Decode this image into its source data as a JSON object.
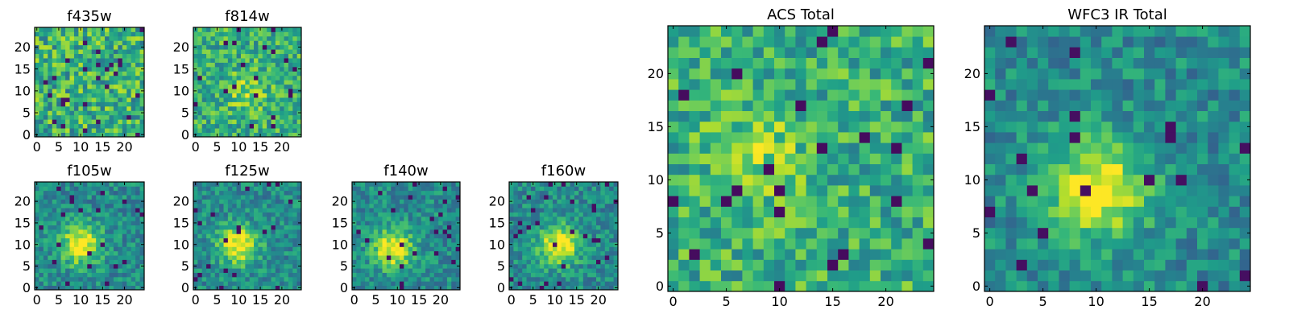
{
  "chart_data": [
    {
      "type": "heatmap",
      "title": "f435w",
      "xlim": [
        -0.5,
        24.5
      ],
      "ylim": [
        -0.5,
        24.5
      ],
      "grid_size": [
        25,
        25
      ],
      "xticks": [
        0,
        5,
        10,
        15,
        20
      ],
      "yticks": [
        0,
        5,
        10,
        15,
        20
      ],
      "colormap": "viridis",
      "pattern": "noise",
      "seed": 11
    },
    {
      "type": "heatmap",
      "title": "f814w",
      "xlim": [
        -0.5,
        24.5
      ],
      "ylim": [
        -0.5,
        24.5
      ],
      "grid_size": [
        25,
        25
      ],
      "xticks": [
        0,
        5,
        10,
        15,
        20
      ],
      "yticks": [
        0,
        5,
        10,
        15,
        20
      ],
      "colormap": "viridis",
      "pattern": "noise+faint-source",
      "source_center": [
        12,
        10
      ],
      "seed": 23
    },
    {
      "type": "heatmap",
      "title": "f105w",
      "xlim": [
        -0.5,
        24.5
      ],
      "ylim": [
        -0.5,
        24.5
      ],
      "grid_size": [
        25,
        25
      ],
      "xticks": [
        0,
        5,
        10,
        15,
        20
      ],
      "yticks": [
        0,
        5,
        10,
        15,
        20
      ],
      "colormap": "viridis",
      "pattern": "source",
      "source_center": [
        10,
        10
      ],
      "seed": 37
    },
    {
      "type": "heatmap",
      "title": "f125w",
      "xlim": [
        -0.5,
        24.5
      ],
      "ylim": [
        -0.5,
        24.5
      ],
      "grid_size": [
        25,
        25
      ],
      "xticks": [
        0,
        5,
        10,
        15,
        20
      ],
      "yticks": [
        0,
        5,
        10,
        15,
        20
      ],
      "colormap": "viridis",
      "pattern": "source",
      "source_center": [
        10,
        10
      ],
      "seed": 41
    },
    {
      "type": "heatmap",
      "title": "f140w",
      "xlim": [
        -0.5,
        24.5
      ],
      "ylim": [
        -0.5,
        24.5
      ],
      "grid_size": [
        25,
        25
      ],
      "xticks": [
        0,
        5,
        10,
        15,
        20
      ],
      "yticks": [
        0,
        5,
        10,
        15,
        20
      ],
      "colormap": "viridis",
      "pattern": "source",
      "source_center": [
        9,
        9
      ],
      "seed": 53
    },
    {
      "type": "heatmap",
      "title": "f160w",
      "xlim": [
        -0.5,
        24.5
      ],
      "ylim": [
        -0.5,
        24.5
      ],
      "grid_size": [
        25,
        25
      ],
      "xticks": [
        0,
        5,
        10,
        15,
        20
      ],
      "yticks": [
        0,
        5,
        10,
        15,
        20
      ],
      "colormap": "viridis",
      "pattern": "source",
      "source_center": [
        11,
        10
      ],
      "seed": 67
    },
    {
      "type": "heatmap",
      "title": "ACS Total",
      "xlim": [
        -0.5,
        24.5
      ],
      "ylim": [
        -0.5,
        24.5
      ],
      "grid_size": [
        25,
        25
      ],
      "xticks": [
        0,
        5,
        10,
        15,
        20
      ],
      "yticks": [
        0,
        5,
        10,
        15,
        20
      ],
      "colormap": "viridis",
      "pattern": "noise+faint-source",
      "source_center": [
        8,
        12
      ],
      "seed": 71
    },
    {
      "type": "heatmap",
      "title": "WFC3 IR Total",
      "xlim": [
        -0.5,
        24.5
      ],
      "ylim": [
        -0.5,
        24.5
      ],
      "grid_size": [
        25,
        25
      ],
      "xticks": [
        0,
        5,
        10,
        15,
        20
      ],
      "yticks": [
        0,
        5,
        10,
        15,
        20
      ],
      "colormap": "viridis",
      "pattern": "source",
      "source_center": [
        10,
        9
      ],
      "seed": 89
    }
  ]
}
